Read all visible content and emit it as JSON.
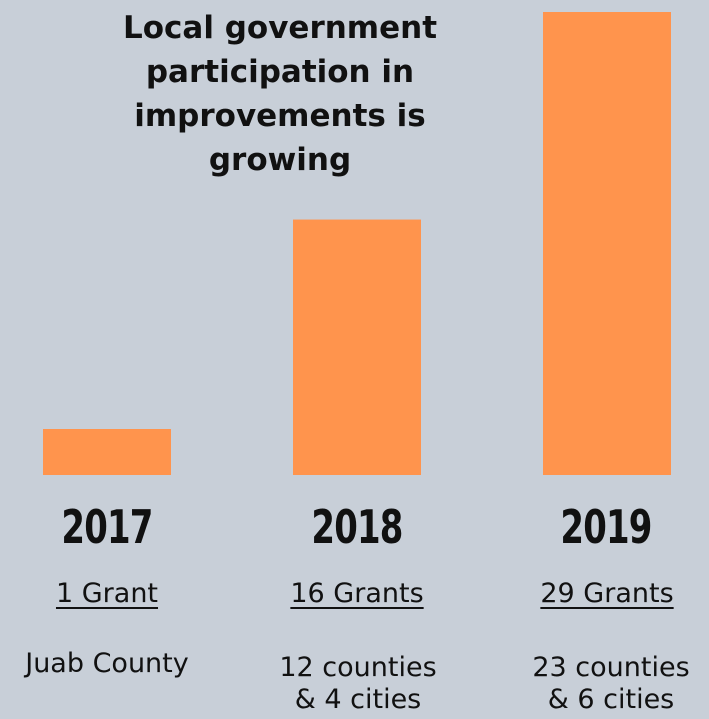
{
  "chart_data": {
    "type": "bar",
    "title": "Local government participation in improvements is growing",
    "categories": [
      "2017",
      "2018",
      "2019"
    ],
    "values": [
      1,
      16,
      29
    ],
    "ylim": [
      0,
      29
    ],
    "xlabel": "",
    "ylabel": "",
    "grid": false,
    "bar_color": "#ff944d",
    "background_color": "#c8cfd8",
    "labels": [
      {
        "year": "2017",
        "grants": "1 Grant",
        "description": "Juab County"
      },
      {
        "year": "2018",
        "grants": "16 Grants",
        "description": "12 counties\n& 4 cities"
      },
      {
        "year": "2019",
        "grants": "29 Grants",
        "description": "23 counties\n& 6 cities"
      }
    ]
  }
}
